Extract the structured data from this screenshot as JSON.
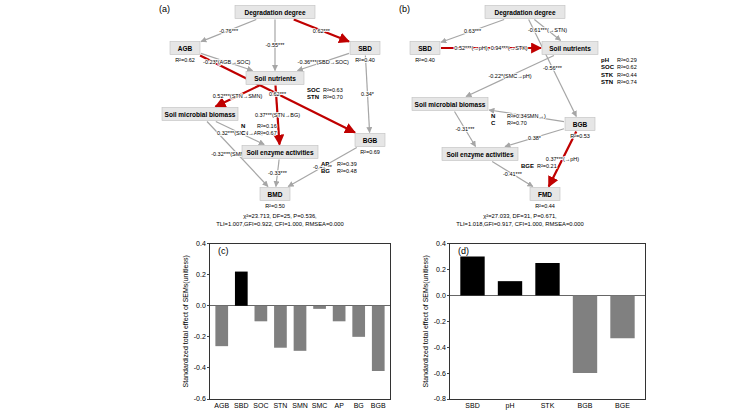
{
  "chart_data": [
    {
      "type": "bar",
      "title": "(c)",
      "y_label": "Standardized total effect of SEMs(unitless)",
      "categories": [
        "AGB",
        "SBD",
        "SOC",
        "STN",
        "SMN",
        "SMC",
        "AP",
        "BG",
        "BGB"
      ],
      "values": [
        -0.26,
        0.22,
        -0.1,
        -0.27,
        -0.29,
        -0.02,
        -0.1,
        -0.2,
        -0.42
      ],
      "colors": [
        "#808080",
        "#000000",
        "#808080",
        "#808080",
        "#808080",
        "#808080",
        "#808080",
        "#808080",
        "#808080"
      ],
      "ylim": [
        -0.6,
        0.4
      ],
      "yticks": [
        -0.6,
        -0.4,
        -0.2,
        {
          "value": 0,
          "label": "0.0"
        },
        0.2,
        0.4
      ],
      "grid": false
    },
    {
      "type": "bar",
      "title": "(d)",
      "y_label": "Standardized total effect of SEMs(unitless)",
      "categories": [
        "SBD",
        "pH",
        "STK",
        "BGB",
        "BGE"
      ],
      "values": [
        0.3,
        0.11,
        0.25,
        -0.6,
        -0.33
      ],
      "colors": [
        "#000000",
        "#000000",
        "#000000",
        "#808080",
        "#808080"
      ],
      "ylim": [
        -0.8,
        0.4
      ],
      "yticks": [
        -0.8,
        -0.6,
        -0.4,
        -0.2,
        {
          "value": 0,
          "label": "0.0"
        },
        0.2,
        0.4
      ],
      "grid": false
    }
  ],
  "diagrams": [
    {
      "title": "(a)",
      "nodes": [
        {
          "label": "Degradation degree"
        },
        {
          "label": "AGB",
          "r2": "R²=0.62"
        },
        {
          "label": "SBD",
          "r2": "R²=0.40"
        },
        {
          "label": "Soil nutrients",
          "subs": [
            {
              "label": "SOC",
              "r2": "R²=0.63"
            },
            {
              "label": "STN",
              "r2": "R²=0.70"
            }
          ]
        },
        {
          "label": "Soil microbial biomass",
          "subs": [
            {
              "label": "N",
              "r2": "R²=0.16"
            },
            {
              "label": "C",
              "r2": "R²=0.67"
            }
          ]
        },
        {
          "label": "Soil enzyme activities",
          "subs": [
            {
              "label": "AP",
              "r2": "R²=0.39"
            },
            {
              "label": "BG",
              "r2": "R²=0.48"
            }
          ]
        },
        {
          "label": "BGB",
          "r2": "R²=0.69"
        },
        {
          "label": "BMD",
          "r2": "R²=0.50"
        }
      ],
      "edges": [
        {
          "from": "Degradation degree",
          "to": "AGB",
          "label": "-0.76***",
          "color": "#a6a6a6"
        },
        {
          "from": "Degradation degree",
          "to": "SBD",
          "label": "0.62***",
          "color": "#c00000"
        },
        {
          "from": "Degradation degree",
          "to": "Soil nutrients",
          "label": "-0.55***",
          "color": "#a6a6a6"
        },
        {
          "from": "AGB",
          "to": "Soil nutrients",
          "label": "-0.23*(AGB→SOC)",
          "color": "#a6a6a6"
        },
        {
          "from": "SBD",
          "to": "Soil nutrients",
          "label": "-0.36***(SBD→SOC)",
          "color": "#a6a6a6"
        },
        {
          "from": "AGB",
          "to": "BGB",
          "label": "0.62***",
          "color": "#c00000"
        },
        {
          "from": "SBD",
          "to": "BGB",
          "label": "0.34*",
          "color": "#a6a6a6"
        },
        {
          "from": "Soil nutrients",
          "to": "Soil microbial biomass",
          "label": "0.52***(STN→SMN)",
          "color": "#c00000"
        },
        {
          "from": "Soil nutrients",
          "to": "Soil enzyme activities",
          "label": "0.37***(STN→BG)",
          "color": "#c00000"
        },
        {
          "from": "Soil microbial biomass",
          "to": "Soil enzyme activities",
          "label": "0.32***(SMN→AP)",
          "color": "#a6a6a6"
        },
        {
          "from": "Soil microbial biomass",
          "to": "BMD",
          "label": "-0.32***(SMN→BMD)",
          "color": "#a6a6a6"
        },
        {
          "from": "Soil enzyme activities",
          "to": "BMD",
          "label": "-0.33***",
          "color": "#a6a6a6"
        },
        {
          "from": "BGB",
          "to": "BMD",
          "label": "-0.42***",
          "color": "#a6a6a6"
        }
      ],
      "fit": [
        "χ²=23.713, DF=25, P=0.536,",
        "TLI=1.007,GFI=0.922, CFI=1.000, RMSEA=0.000"
      ]
    },
    {
      "title": "(b)",
      "nodes": [
        {
          "label": "Degradation degree"
        },
        {
          "label": "SBD",
          "r2": "R²=0.40"
        },
        {
          "label": "Soil nutrients",
          "subs": [
            {
              "label": "pH",
              "r2": "R²=0.29"
            },
            {
              "label": "SOC",
              "r2": "R²=0.62"
            },
            {
              "label": "STK",
              "r2": "R²=0.44"
            },
            {
              "label": "STN",
              "r2": "R²=0.74"
            }
          ]
        },
        {
          "label": "Soil microbial biomass",
          "subs": [
            {
              "label": "N",
              "r2": "R²=0.34"
            },
            {
              "label": "C",
              "r2": "R²=0.70"
            }
          ]
        },
        {
          "label": "BGB",
          "r2": "R²=0.53"
        },
        {
          "label": "Soil enzyme activities",
          "subs": [
            {
              "label": "BGE",
              "r2": "R²=0.21"
            }
          ]
        },
        {
          "label": "FMD",
          "r2": "R²=0.44"
        }
      ],
      "edges": [
        {
          "from": "Degradation degree",
          "to": "SBD",
          "label": "0.63***",
          "color": "#a6a6a6"
        },
        {
          "from": "Degradation degree",
          "to": "Soil nutrients",
          "label": "-0.61***(→STN)",
          "color": "#a6a6a6"
        },
        {
          "from": "SBD",
          "to": "Soil nutrients",
          "label": "0.52***(→pH), 0.94***(→STK)",
          "color": "#c00000"
        },
        {
          "from": "Degradation degree",
          "to": "BGB",
          "label": "-0.56***",
          "color": "#a6a6a6"
        },
        {
          "from": "Soil nutrients",
          "to": "Soil microbial biomass",
          "label": "-0.22*(SMC→pH)",
          "color": "#a6a6a6"
        },
        {
          "from": "BGB",
          "to": "Soil microbial biomass",
          "label": "0.34***(SMN→)",
          "color": "#a6a6a6"
        },
        {
          "from": "Soil microbial biomass",
          "to": "Soil enzyme activities",
          "label": "-0.31***",
          "color": "#a6a6a6"
        },
        {
          "from": "BGB",
          "to": "Soil enzyme activities",
          "label": "0.38*",
          "color": "#a6a6a6"
        },
        {
          "from": "Soil enzyme activities",
          "to": "FMD",
          "label": "-0.41***",
          "color": "#a6a6a6"
        },
        {
          "from": "BGB",
          "to": "FMD",
          "label": "0.37***(→pH)",
          "color": "#c00000"
        }
      ],
      "fit": [
        "χ²=27.033, DF=31, P=0.671,",
        "TLI=1.018,GFI=0.917, CFI=1.000, RMSEA=0.000"
      ]
    }
  ]
}
